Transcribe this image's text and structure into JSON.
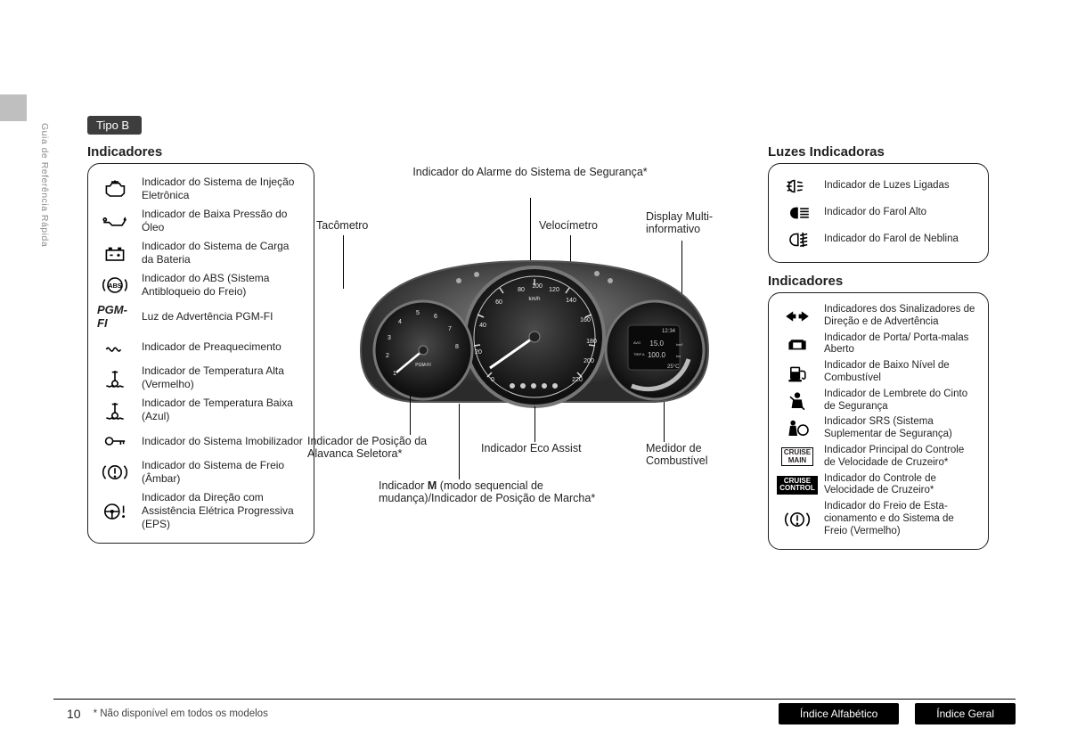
{
  "sideTab": "Guia de Referência Rápida",
  "tipoBadge": "Tipo B",
  "leftTitle": "Indicadores",
  "leftIndicators": [
    {
      "icon": "engine",
      "label": "Indicador do Sistema de Injeção Eletrônica"
    },
    {
      "icon": "oil",
      "label": "Indicador de Baixa Pressão do Óleo"
    },
    {
      "icon": "battery",
      "label": "Indicador do Sistema de Carga da Bateria"
    },
    {
      "icon": "abs",
      "label": "Indicador do ABS (Sistema Antibloqueio do Freio)"
    },
    {
      "icon": "pgmfi",
      "label": "Luz de Advertência PGM-FI"
    },
    {
      "icon": "preheat",
      "label": "Indicador de Preaquecimento"
    },
    {
      "icon": "temp-hi",
      "label": "Indicador de Temperatura Alta (Vermelho)"
    },
    {
      "icon": "temp-lo",
      "label": "Indicador de Temperatura Baixa (Azul)"
    },
    {
      "icon": "key",
      "label": "Indicador do Sistema Imobilizador"
    },
    {
      "icon": "brake-amb",
      "label": "Indicador do Sistema de Freio (Âmbar)"
    },
    {
      "icon": "eps",
      "label": "Indicador da Direção com Assistência Elétrica Progressiva (EPS)"
    }
  ],
  "center": {
    "alarmLabel": "Indicador do Alarme do Sistema de Segurança*",
    "tachLabel": "Tacômetro",
    "speedLabel": "Velocímetro",
    "displayLabel": "Display Multi-informativo",
    "shiftLeverLabel": "Indicador de Posição da Alavanca Seletora*",
    "ecoAssistLabel": "Indicador Eco Assist",
    "fuelGaugeLabel": "Medidor de Combustível",
    "mModeLine1": "Indicador ",
    "mModeBold": "M",
    "mModeLine2": " (modo sequencial de mudança)/Indicador de Posição de Marcha*",
    "speedTicks": [
      "0",
      "20",
      "40",
      "60",
      "80",
      "100",
      "120",
      "140",
      "160",
      "180",
      "200",
      "220"
    ],
    "speedUnit": "km/h",
    "tachTicks": [
      "1",
      "2",
      "3",
      "4",
      "5",
      "6",
      "7",
      "8"
    ],
    "pgmfi": "PGM-FI",
    "displayTime": "12:34",
    "displayAvg": "AVG",
    "displayVal1": "15.0",
    "displayUnit1": "km/l",
    "displayTrip": "TRIP A",
    "displayVal2": "100.0",
    "displayUnit2": "km",
    "displayTemp": "25°C"
  },
  "rightTitle1": "Luzes Indicadoras",
  "lights": [
    {
      "icon": "lights-on",
      "label": "Indicador de Luzes Ligadas"
    },
    {
      "icon": "high-beam",
      "label": "Indicador do Farol Alto"
    },
    {
      "icon": "fog",
      "label": "Indicador do Farol de Neblina"
    }
  ],
  "rightTitle2": "Indicadores",
  "rightIndicators": [
    {
      "icon": "turn",
      "label": "Indicadores dos Sinalizadores de Direção e de Advertência"
    },
    {
      "icon": "door",
      "label": "Indicador de Porta/ Porta-malas Aberto"
    },
    {
      "icon": "fuel",
      "label": "Indicador de Baixo Nível de Combustível"
    },
    {
      "icon": "seatbelt",
      "label": "Indicador de Lembrete do Cinto de Segurança"
    },
    {
      "icon": "srs",
      "label": "Indicador SRS (Sistema Suplementar de Segurança)"
    },
    {
      "icon": "cruise-main",
      "label": "Indicador Principal do Controle de Velocidade de Cruzeiro*"
    },
    {
      "icon": "cruise-control",
      "label": "Indicador do Controle de Velocidade de Cruzeiro*"
    },
    {
      "icon": "brake-red",
      "label": "Indicador do Freio de Esta­cionamento e do Sistema de Freio (Vermelho)"
    }
  ],
  "cruiseMain": "CRUISE MAIN",
  "cruiseControl": "CRUISE CONTROL",
  "pageNo": "10",
  "footnote": "* Não disponível em todos os modelos",
  "idxAlpha": "Índice Alfabético",
  "idxGeral": "Índice Geral"
}
